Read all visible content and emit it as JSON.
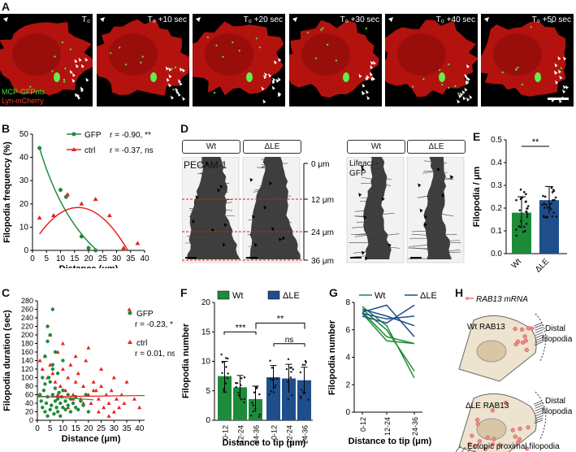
{
  "panelA": {
    "label": "A",
    "timepoints": [
      "T₀",
      "T₀ +10 sec",
      "T₀ +20 sec",
      "T₀ +30 sec",
      "T₀ +40 sec",
      "T₀ +50 sec"
    ],
    "legend_green": "MCP-GFPnls",
    "legend_red": "Lyn-mCherry"
  },
  "panelB": {
    "label": "B",
    "ylabel": "Filopodia frequency (%)",
    "xlabel": "Distance (μm)",
    "legend": [
      {
        "name": "GFP",
        "stat": "r = -0.90, **",
        "color": "#1e8b3a"
      },
      {
        "name": "ctrl",
        "stat": "r = -0.37, ns",
        "color": "#e8201c"
      }
    ],
    "xticks": [
      "0",
      "5",
      "10",
      "15",
      "20",
      "25",
      "30",
      "35",
      "40"
    ],
    "yticks": [
      "0",
      "10",
      "20",
      "30",
      "40",
      "50"
    ]
  },
  "panelC": {
    "label": "C",
    "ylabel": "Filopodia duration (sec)",
    "xlabel": "Distance (μm)",
    "legend": [
      {
        "name": "GFP",
        "stat": "r = -0.23, *",
        "color": "#1e8b3a"
      },
      {
        "name": "ctrl",
        "stat": "r = 0.01, ns",
        "color": "#e8201c"
      }
    ],
    "xticks": [
      "0",
      "5",
      "10",
      "15",
      "20",
      "25",
      "30",
      "35",
      "40"
    ],
    "yticks": [
      "0",
      "20",
      "40",
      "60",
      "80",
      "100",
      "120",
      "140",
      "160",
      "180",
      "200",
      "220",
      "240",
      "260",
      "280"
    ]
  },
  "panelD": {
    "label": "D",
    "headers_left": [
      "Wt",
      "ΔLE"
    ],
    "headers_right": [
      "Wt",
      "ΔLE"
    ],
    "stain_left": "PECAM-1",
    "stain_right": "Lifeact -GFP",
    "depths": [
      "0 μm",
      "12 μm",
      "24 μm",
      "36 μm"
    ]
  },
  "panelE": {
    "label": "E",
    "ylabel": "Filopodia / μm",
    "categories": [
      "Wt",
      "ΔLE"
    ],
    "sig": "**",
    "yticks": [
      "0.0",
      "0.1",
      "0.2",
      "0.3",
      "0.4",
      "0.5"
    ]
  },
  "panelF": {
    "label": "F",
    "ylabel": "Filopodia number",
    "xlabel": "Distance to tip (μm)",
    "legend": [
      "Wt",
      "ΔLE"
    ],
    "categories": [
      "0-12",
      "12-24",
      "24-36"
    ],
    "sig": [
      "***",
      "**",
      "ns"
    ],
    "yticks": [
      "0",
      "5",
      "10",
      "15",
      "20"
    ]
  },
  "panelG": {
    "label": "G",
    "ylabel": "Filopodia number",
    "xlabel": "Distance to tip (μm)",
    "legend": [
      "Wt",
      "ΔLE"
    ],
    "categories": [
      "0-12",
      "12-24",
      "24-36"
    ],
    "yticks": [
      "0",
      "2",
      "4",
      "6",
      "8"
    ]
  },
  "panelH": {
    "label": "H",
    "legend": "RAB13 mRNA",
    "wt_label": "Wt RAB13",
    "wt_side": "Distal filopodia",
    "dle_label": "ΔLE RAB13",
    "dle_side": "Distal filopodia",
    "bottom": "Ectopic proximal filopodia"
  },
  "chart_data": [
    {
      "type": "line",
      "panel": "B",
      "series": [
        {
          "name": "GFP",
          "x": [
            2.5,
            10,
            12,
            17.5,
            20,
            22.5
          ],
          "y": [
            44,
            26,
            23,
            6,
            1,
            0
          ],
          "color": "#1e8b3a"
        },
        {
          "name": "ctrl",
          "x": [
            2.5,
            7.5,
            12.5,
            17.5,
            22.5,
            27.5,
            32.5,
            37.5
          ],
          "y": [
            14,
            15,
            24,
            20,
            22,
            15,
            1,
            3
          ],
          "color": "#e8201c"
        }
      ],
      "xlim": [
        0,
        40
      ],
      "ylim": [
        0,
        50
      ]
    },
    {
      "type": "scatter",
      "panel": "C",
      "series": [
        {
          "name": "GFP",
          "x": [
            1,
            1.5,
            2,
            2.5,
            3,
            3,
            3.5,
            4,
            4,
            4.5,
            5,
            5,
            5.5,
            6,
            6,
            6.5,
            7,
            7,
            7.5,
            8,
            8,
            8.5,
            9,
            9,
            9.5,
            10,
            10,
            11,
            11,
            12,
            12,
            13,
            13,
            14,
            15,
            15,
            16,
            17,
            18,
            19,
            20,
            3,
            4,
            5,
            6,
            7,
            2,
            4,
            6,
            8,
            10
          ],
          "y": [
            60,
            45,
            30,
            70,
            85,
            20,
            40,
            10,
            55,
            100,
            90,
            25,
            35,
            130,
            60,
            15,
            45,
            75,
            30,
            50,
            20,
            65,
            40,
            10,
            55,
            30,
            70,
            25,
            45,
            60,
            35,
            20,
            50,
            40,
            30,
            55,
            25,
            45,
            35,
            60,
            20,
            150,
            185,
            200,
            120,
            160,
            100,
            220,
            260,
            110,
            140
          ],
          "color": "#1e8b3a"
        },
        {
          "name": "ctrl",
          "x": [
            1,
            2,
            3,
            4,
            5,
            6,
            7,
            8,
            9,
            10,
            11,
            12,
            13,
            14,
            15,
            16,
            17,
            18,
            19,
            20,
            21,
            22,
            23,
            24,
            25,
            26,
            27,
            28,
            29,
            30,
            31,
            32,
            33,
            34,
            36,
            38,
            40,
            5,
            10,
            15,
            20,
            25,
            30,
            12,
            18,
            24,
            8,
            14,
            22,
            28,
            35
          ],
          "y": [
            140,
            120,
            150,
            100,
            130,
            110,
            90,
            160,
            80,
            120,
            70,
            100,
            130,
            60,
            90,
            110,
            50,
            80,
            140,
            60,
            40,
            90,
            70,
            50,
            80,
            30,
            60,
            40,
            70,
            20,
            50,
            30,
            60,
            40,
            260,
            50,
            30,
            200,
            180,
            150,
            170,
            120,
            100,
            30,
            40,
            20,
            60,
            50,
            70,
            10,
            90
          ],
          "color": "#e8201c"
        }
      ],
      "fits": [
        {
          "name": "GFP",
          "y0": 57,
          "y1": 48
        },
        {
          "name": "ctrl",
          "y0": 55,
          "y1": 58
        }
      ],
      "xlim": [
        0,
        42
      ],
      "ylim": [
        0,
        280
      ]
    },
    {
      "type": "bar",
      "panel": "E",
      "categories": [
        "Wt",
        "ΔLE"
      ],
      "values": [
        0.18,
        0.235
      ],
      "errors": [
        0.07,
        0.06
      ],
      "colors": [
        "#1e8b3a",
        "#1f4e8c"
      ],
      "ylim": [
        0,
        0.5
      ]
    },
    {
      "type": "bar",
      "panel": "F",
      "categories": [
        "0-12",
        "12-24",
        "24-36"
      ],
      "series": [
        {
          "name": "Wt",
          "values": [
            7.5,
            5.6,
            3.6
          ],
          "errors": [
            2.5,
            2.0,
            2.2
          ],
          "color": "#1e8b3a"
        },
        {
          "name": "ΔLE",
          "values": [
            7.3,
            7.1,
            6.8
          ],
          "errors": [
            2.0,
            2.4,
            2.2
          ],
          "color": "#1f4e8c"
        }
      ],
      "ylim": [
        0,
        20
      ]
    },
    {
      "type": "line",
      "panel": "G",
      "categories": [
        "0-12",
        "12-24",
        "24-36"
      ],
      "series": [
        {
          "name": "Wt",
          "values": [
            [
              7.5,
              6.0,
              3.0
            ],
            [
              7.3,
              5.5,
              5.0
            ],
            [
              7.7,
              6.3,
              2.5
            ],
            [
              7.2,
              5.2,
              5.0
            ]
          ],
          "color": "#1e8b3a"
        },
        {
          "name": "ΔLE",
          "values": [
            [
              7.3,
              7.8,
              5.5
            ],
            [
              7.0,
              6.5,
              7.8
            ],
            [
              7.5,
              7.0,
              6.3
            ],
            [
              7.2,
              6.8,
              7.0
            ]
          ],
          "color": "#1f4e8c"
        }
      ],
      "ylim": [
        0,
        8
      ]
    }
  ]
}
